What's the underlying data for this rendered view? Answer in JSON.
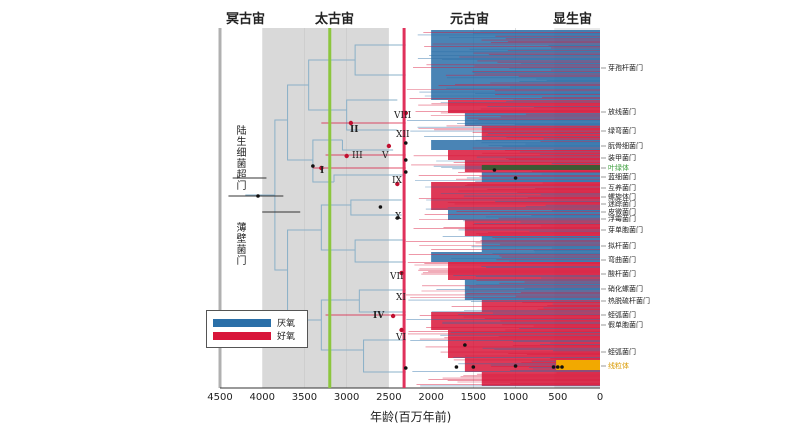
{
  "eons": [
    {
      "label": "冥古宙",
      "x": 245
    },
    {
      "label": "太古宙",
      "x": 335
    },
    {
      "label": "元古宙",
      "x": 470
    },
    {
      "label": "显生宙",
      "x": 573
    }
  ],
  "axis": {
    "title": "年龄(百万年前)",
    "ticks": [
      "4500",
      "4000",
      "3500",
      "3000",
      "2500",
      "2000",
      "1500",
      "1000",
      "500",
      "0"
    ]
  },
  "supergroups": {
    "top": "陆生细菌超门",
    "bottom": "薄壁菌门"
  },
  "roman_labels": [
    {
      "text": "VIII",
      "bold": false
    },
    {
      "text": "II",
      "bold": true
    },
    {
      "text": "XII",
      "bold": false
    },
    {
      "text": "III",
      "bold": false
    },
    {
      "text": "V",
      "bold": false
    },
    {
      "text": "I",
      "bold": true
    },
    {
      "text": "IX",
      "bold": false
    },
    {
      "text": "X",
      "bold": false
    },
    {
      "text": "VII",
      "bold": false
    },
    {
      "text": "XI",
      "bold": false
    },
    {
      "text": "IV",
      "bold": true
    },
    {
      "text": "VI",
      "bold": false
    }
  ],
  "phyla": [
    {
      "label": "芽孢杆菌门",
      "color": ""
    },
    {
      "label": "放线菌门",
      "color": ""
    },
    {
      "label": "绿弯菌门",
      "color": ""
    },
    {
      "label": "朊骨细菌门",
      "color": ""
    },
    {
      "label": "装甲菌门",
      "color": ""
    },
    {
      "label": "叶绿体",
      "color": "green"
    },
    {
      "label": "蓝细菌门",
      "color": ""
    },
    {
      "label": "互养菌门",
      "color": ""
    },
    {
      "label": "螺旋体门",
      "color": ""
    },
    {
      "label": "迷踪菌门",
      "color": ""
    },
    {
      "label": "皮微菌门",
      "color": ""
    },
    {
      "label": "浮霉菌门",
      "color": ""
    },
    {
      "label": "芽单胞菌门",
      "color": ""
    },
    {
      "label": "拟杆菌门",
      "color": ""
    },
    {
      "label": "弯曲菌门",
      "color": ""
    },
    {
      "label": "酸杆菌门",
      "color": ""
    },
    {
      "label": "硝化螺菌门",
      "color": ""
    },
    {
      "label": "热脱硫杆菌门",
      "color": ""
    },
    {
      "label": "蛭弧菌门",
      "color": ""
    },
    {
      "label": "假单胞菌门",
      "color": ""
    },
    {
      "label": "蛭弧菌门",
      "color": ""
    },
    {
      "label": "线粒体",
      "color": "orange"
    }
  ],
  "legend": {
    "anaerobic": "厌氧",
    "aerobic": "好氧"
  },
  "colors": {
    "anaerobic": "#2a6fa8",
    "aerobic": "#d8163a",
    "tree_line": "#8ab0c8",
    "gray_band": "#d9d9d9",
    "green_line": "#8cc63e",
    "red_line": "#e0315b",
    "hadean_line": "#b0b0b0",
    "chloroplast": "#3a9d3a",
    "mitochondria": "#f2a900"
  }
}
